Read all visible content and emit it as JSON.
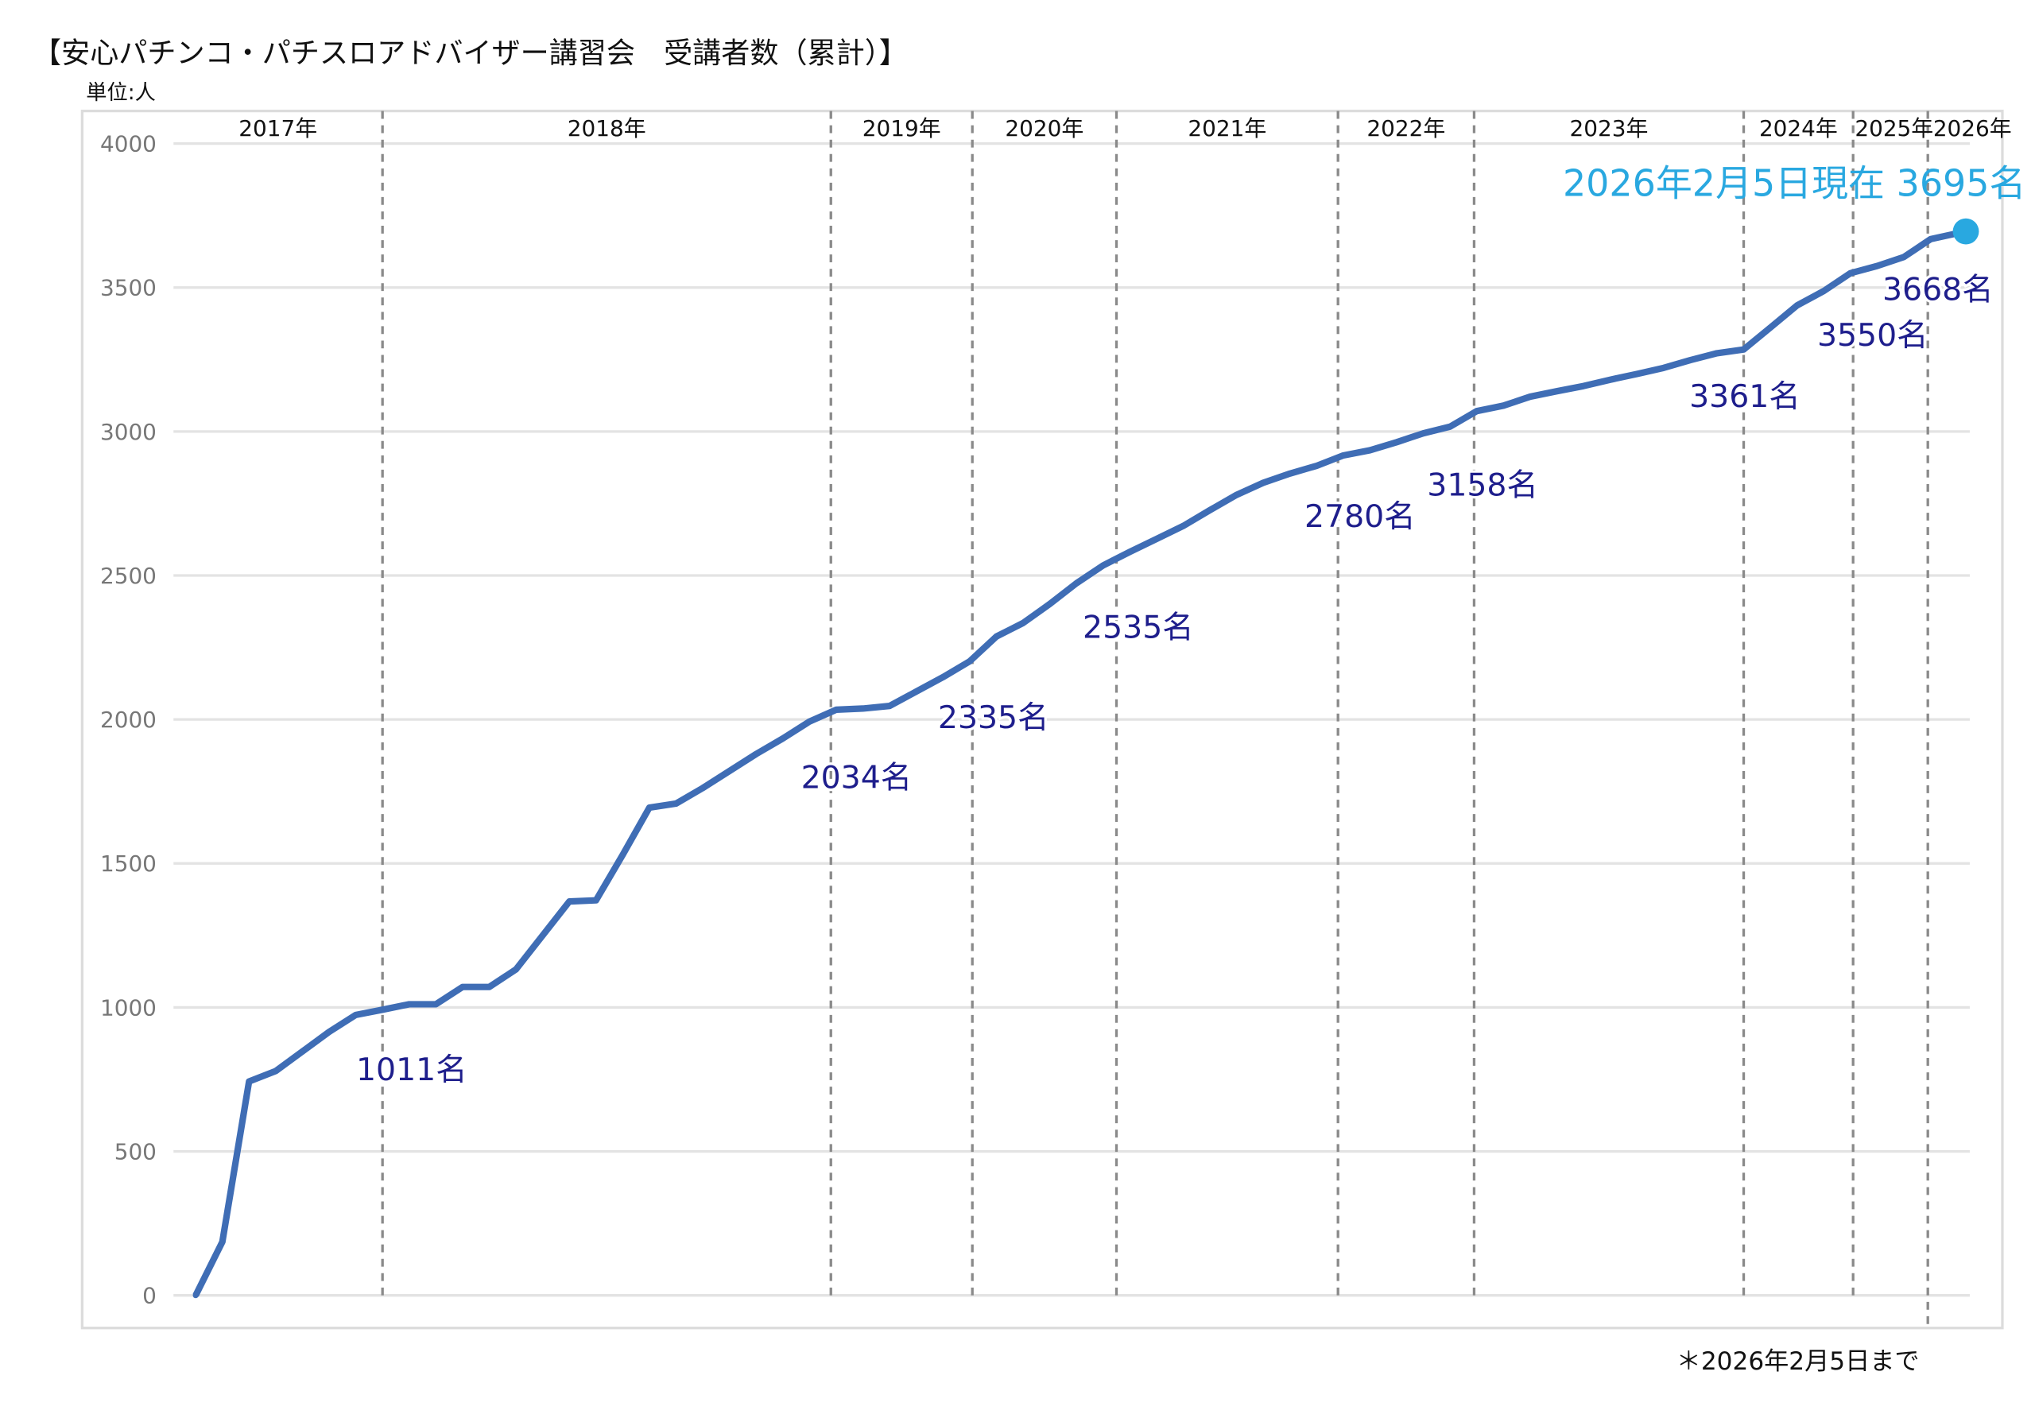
{
  "chart_data": {
    "type": "line",
    "title": "【安心パチンコ・パチスロアドバイザー講習会　受講者数（累計）】",
    "ylabel": "単位:人",
    "xlabel": "",
    "ylim": [
      0,
      4000
    ],
    "yticks": [
      0,
      500,
      1000,
      1500,
      2000,
      2500,
      3000,
      3500,
      4000
    ],
    "grid": true,
    "series": [
      {
        "name": "受講者数（累計）",
        "values": [
          0,
          186,
          743,
          779,
          847,
          915,
          974,
          992,
          1011,
          1011,
          1071,
          1071,
          1132,
          1250,
          1368,
          1372,
          1530,
          1694,
          1708,
          1762,
          1821,
          1880,
          1934,
          1993,
          2034,
          2038,
          2047,
          2097,
          2147,
          2202,
          2288,
          2335,
          2401,
          2473,
          2535,
          2582,
          2627,
          2672,
          2727,
          2780,
          2822,
          2854,
          2881,
          2917,
          2935,
          2963,
          2994,
          3017,
          3071,
          3090,
          3121,
          3140,
          3158,
          3180,
          3200,
          3221,
          3248,
          3272,
          3285,
          3361,
          3438,
          3488,
          3550,
          3575,
          3606,
          3668,
          3695
        ]
      }
    ],
    "year_labels": [
      "2017年",
      "2018年",
      "2019年",
      "2020年",
      "2021年",
      "2022年",
      "2023年",
      "2024年",
      "2025年",
      "2026年"
    ],
    "year_boundaries_index": [
      7,
      23.8,
      29.1,
      34.5,
      42.8,
      47.9,
      58.0,
      62.1,
      64.9
    ],
    "data_labels": [
      {
        "index": 8,
        "text": "1011名"
      },
      {
        "index": 24,
        "text": "2034名"
      },
      {
        "index": 31,
        "text": "2335名"
      },
      {
        "index": 34,
        "text": "2535名"
      },
      {
        "index": 39,
        "text": "2780名"
      },
      {
        "index": 52,
        "text": "3158名"
      },
      {
        "index": 59,
        "text": "3361名"
      },
      {
        "index": 62,
        "text": "3550名"
      },
      {
        "index": 65,
        "text": "3668名"
      }
    ],
    "highlight": {
      "text": "2026年2月5日現在 3695名",
      "value": 3695
    },
    "footnote": "＊2026年2月5日まで",
    "colors": {
      "line": "#3f6db5",
      "label": "#1e1e8c",
      "highlight": "#29a8e0",
      "grid": "#e3e3e3",
      "divider": "#8a8a8a"
    }
  }
}
